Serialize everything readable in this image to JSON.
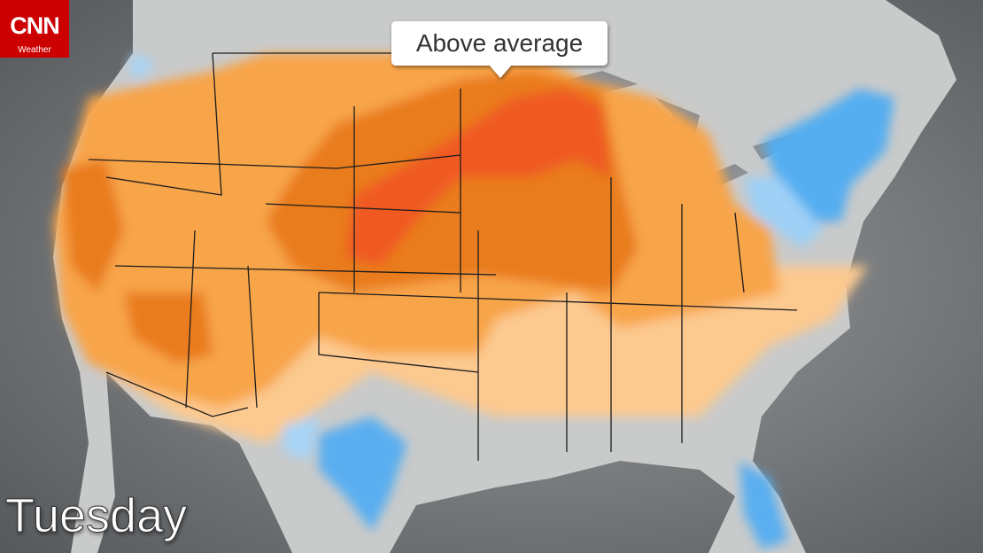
{
  "logo": {
    "brand": "CNN",
    "section": "Weather"
  },
  "callout": "Above average",
  "day": "Tuesday"
}
